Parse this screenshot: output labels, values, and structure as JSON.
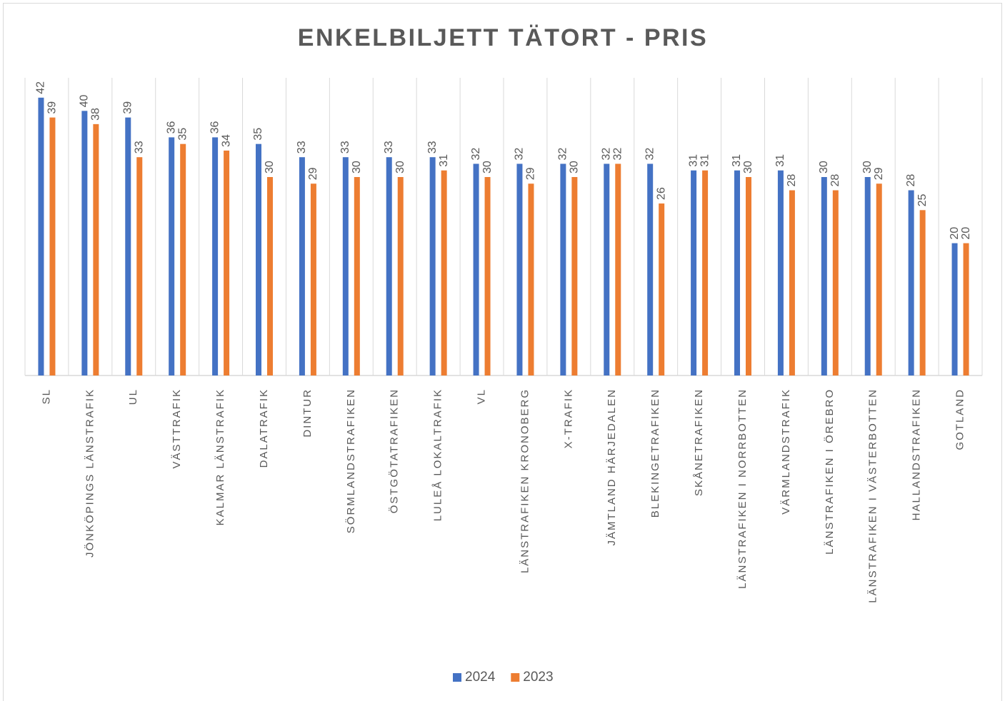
{
  "chart_data": {
    "type": "bar",
    "title": "ENKELBILJETT TÄTORT - PRIS",
    "categories": [
      "SL",
      "JÖNKÖPINGS LÄNSTRAFIK",
      "UL",
      "VÄSTTRAFIK",
      "KALMAR LÄNSTRAFIK",
      "DALATRAFIK",
      "DINTUR",
      "SÖRMLANDSTRAFIKEN",
      "ÖSTGÖTATRAFIKEN",
      "LULEÅ LOKALTRAFIK",
      "VL",
      "LÄNSTRAFIKEN KRONOBERG",
      "X-TRAFIK",
      "JÄMTLAND HÄRJEDALEN",
      "BLEKINGETRAFIKEN",
      "SKÅNETRAFIKEN",
      "LÄNSTRAFIKEN I NORRBOTTEN",
      "VÄRMLANDSTRAFIK",
      "LÄNSTRAFIKEN I ÖREBRO",
      "LÄNSTRAFIKEN I VÄSTERBOTTEN",
      "HALLANDSTRAFIKEN",
      "GOTLAND"
    ],
    "series": [
      {
        "name": "2024",
        "color": "#4472c4",
        "values": [
          42,
          40,
          39,
          36,
          36,
          35,
          33,
          33,
          33,
          33,
          32,
          32,
          32,
          32,
          32,
          31,
          31,
          31,
          30,
          30,
          28,
          20
        ]
      },
      {
        "name": "2023",
        "color": "#ed7d31",
        "values": [
          39,
          38,
          33,
          35,
          34,
          30,
          29,
          30,
          30,
          31,
          30,
          29,
          30,
          32,
          26,
          31,
          30,
          28,
          28,
          29,
          25,
          20
        ]
      }
    ],
    "ylim": [
      0,
      45
    ],
    "legend": "bottom"
  }
}
